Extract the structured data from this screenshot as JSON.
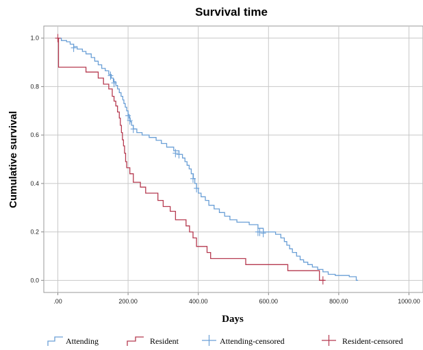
{
  "chart_data": {
    "type": "line",
    "title": "Survival time",
    "xlabel": "Days",
    "ylabel": "Cumulative survival",
    "xlim": [
      -40,
      1040
    ],
    "ylim": [
      -0.05,
      1.05
    ],
    "x_ticks": [
      0,
      200,
      400,
      600,
      800,
      1000
    ],
    "x_tick_labels": [
      ".00",
      "200.00",
      "400.00",
      "600.00",
      "800.00",
      "1000.00"
    ],
    "y_ticks": [
      0,
      0.2,
      0.4,
      0.6,
      0.8,
      1.0
    ],
    "y_tick_labels": [
      "0.0",
      "0.2",
      "0.4",
      "0.6",
      "0.8",
      "1.0"
    ],
    "grid": true,
    "legend_position": "bottom",
    "series": [
      {
        "name": "Attending",
        "color": "#6a9fd6",
        "type": "step",
        "points": [
          [
            0,
            1.0
          ],
          [
            10,
            0.99
          ],
          [
            25,
            0.985
          ],
          [
            35,
            0.975
          ],
          [
            45,
            0.965
          ],
          [
            55,
            0.955
          ],
          [
            70,
            0.945
          ],
          [
            80,
            0.935
          ],
          [
            95,
            0.92
          ],
          [
            105,
            0.905
          ],
          [
            115,
            0.89
          ],
          [
            125,
            0.875
          ],
          [
            135,
            0.865
          ],
          [
            145,
            0.85
          ],
          [
            152,
            0.835
          ],
          [
            158,
            0.82
          ],
          [
            165,
            0.805
          ],
          [
            170,
            0.79
          ],
          [
            175,
            0.775
          ],
          [
            180,
            0.76
          ],
          [
            185,
            0.745
          ],
          [
            188,
            0.73
          ],
          [
            192,
            0.715
          ],
          [
            196,
            0.7
          ],
          [
            200,
            0.685
          ],
          [
            203,
            0.67
          ],
          [
            206,
            0.655
          ],
          [
            210,
            0.64
          ],
          [
            215,
            0.625
          ],
          [
            225,
            0.61
          ],
          [
            240,
            0.6
          ],
          [
            260,
            0.59
          ],
          [
            280,
            0.578
          ],
          [
            295,
            0.565
          ],
          [
            310,
            0.55
          ],
          [
            330,
            0.535
          ],
          [
            345,
            0.52
          ],
          [
            355,
            0.505
          ],
          [
            362,
            0.49
          ],
          [
            368,
            0.475
          ],
          [
            374,
            0.46
          ],
          [
            380,
            0.44
          ],
          [
            386,
            0.42
          ],
          [
            390,
            0.4
          ],
          [
            395,
            0.38
          ],
          [
            400,
            0.36
          ],
          [
            408,
            0.345
          ],
          [
            420,
            0.33
          ],
          [
            430,
            0.31
          ],
          [
            445,
            0.295
          ],
          [
            460,
            0.28
          ],
          [
            475,
            0.265
          ],
          [
            490,
            0.25
          ],
          [
            510,
            0.24
          ],
          [
            545,
            0.23
          ],
          [
            570,
            0.215
          ],
          [
            585,
            0.2
          ],
          [
            620,
            0.19
          ],
          [
            635,
            0.175
          ],
          [
            645,
            0.16
          ],
          [
            652,
            0.145
          ],
          [
            660,
            0.13
          ],
          [
            668,
            0.115
          ],
          [
            680,
            0.1
          ],
          [
            690,
            0.085
          ],
          [
            700,
            0.075
          ],
          [
            712,
            0.065
          ],
          [
            725,
            0.055
          ],
          [
            740,
            0.045
          ],
          [
            755,
            0.035
          ],
          [
            770,
            0.025
          ],
          [
            790,
            0.02
          ],
          [
            830,
            0.015
          ],
          [
            850,
            0.0
          ],
          [
            855,
            0.0
          ]
        ]
      },
      {
        "name": "Resident",
        "color": "#b5394f",
        "type": "step",
        "points": [
          [
            0,
            1.0
          ],
          [
            2,
            0.88
          ],
          [
            80,
            0.86
          ],
          [
            115,
            0.835
          ],
          [
            130,
            0.81
          ],
          [
            145,
            0.79
          ],
          [
            155,
            0.76
          ],
          [
            160,
            0.74
          ],
          [
            165,
            0.72
          ],
          [
            170,
            0.695
          ],
          [
            175,
            0.67
          ],
          [
            178,
            0.64
          ],
          [
            181,
            0.61
          ],
          [
            184,
            0.58
          ],
          [
            187,
            0.555
          ],
          [
            190,
            0.525
          ],
          [
            193,
            0.49
          ],
          [
            196,
            0.465
          ],
          [
            205,
            0.44
          ],
          [
            215,
            0.405
          ],
          [
            235,
            0.385
          ],
          [
            250,
            0.36
          ],
          [
            285,
            0.33
          ],
          [
            300,
            0.305
          ],
          [
            320,
            0.285
          ],
          [
            335,
            0.25
          ],
          [
            365,
            0.225
          ],
          [
            375,
            0.2
          ],
          [
            385,
            0.175
          ],
          [
            395,
            0.14
          ],
          [
            425,
            0.115
          ],
          [
            435,
            0.09
          ],
          [
            535,
            0.065
          ],
          [
            655,
            0.04
          ],
          [
            745,
            0.0
          ],
          [
            760,
            0.0
          ]
        ]
      }
    ],
    "censored": [
      {
        "name": "Attending-censored",
        "color": "#6a9fd6",
        "points": [
          [
            45,
            0.96
          ],
          [
            150,
            0.845
          ],
          [
            160,
            0.815
          ],
          [
            200,
            0.68
          ],
          [
            205,
            0.66
          ],
          [
            215,
            0.625
          ],
          [
            335,
            0.525
          ],
          [
            345,
            0.52
          ],
          [
            385,
            0.42
          ],
          [
            395,
            0.38
          ],
          [
            570,
            0.2
          ],
          [
            575,
            0.2
          ],
          [
            585,
            0.195
          ]
        ]
      },
      {
        "name": "Resident-censored",
        "color": "#b5394f",
        "points": [
          [
            0,
            1.0
          ],
          [
            755,
            0.0
          ]
        ]
      }
    ]
  }
}
